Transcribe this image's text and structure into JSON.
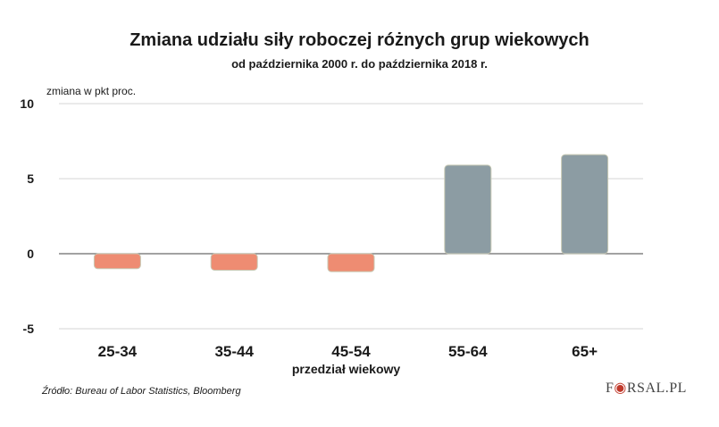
{
  "logo_text": "FORSAL.PL",
  "source": "Źródło:  Bureau of Labor Statistics, Bloomberg",
  "colors": {
    "negative": "#ee8c72",
    "positive": "#8c9ca3",
    "bar_stroke": "#c8c9b4",
    "grid": "#d4d4d4",
    "zero_line": "#6a6a6a"
  },
  "chart_data": {
    "type": "bar",
    "title": "Zmiana udziału siły roboczej różnych grup wiekowych",
    "subtitle": "od października 2000 r. do października 2018 r.",
    "ylabel": "zmiana w pkt proc.",
    "xlabel": "przedział wiekowy",
    "categories": [
      "25-34",
      "35-44",
      "45-54",
      "55-64",
      "65+"
    ],
    "values": [
      -1.0,
      -1.1,
      -1.2,
      5.9,
      6.6
    ],
    "ylim": [
      -5,
      10
    ],
    "yticks": [
      10,
      5,
      0,
      -5
    ],
    "grid": true,
    "legend": "none"
  }
}
